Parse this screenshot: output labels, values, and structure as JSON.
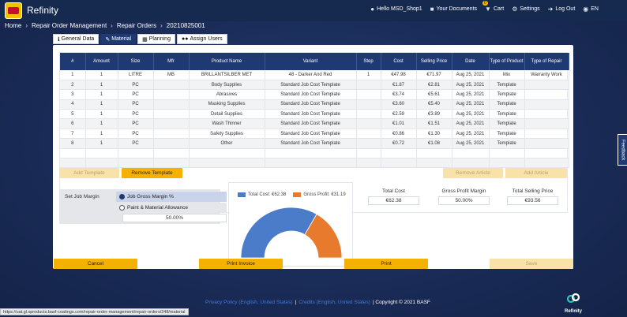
{
  "app": {
    "name": "Refinity"
  },
  "topnav": {
    "user": "Hello MSD_Shop1",
    "documents": "Your Documents",
    "cart": "Cart",
    "cart_badge": "0",
    "settings": "Settings",
    "logout": "Log Out",
    "language": "EN"
  },
  "breadcrumb": [
    "Home",
    "Repair Order Management",
    "Repair Orders",
    "20210825001"
  ],
  "tabs": [
    "General Data",
    "Material",
    "Planning",
    "Assign Users"
  ],
  "table": {
    "headers": [
      "#",
      "Amount",
      "Size",
      "Mfr",
      "Product Name",
      "Variant",
      "Step",
      "Cost",
      "Selling Price",
      "Date",
      "Type of Product",
      "Type of Repair"
    ],
    "rows": [
      [
        "1",
        "1",
        "LITRE",
        "MB",
        "BRILLANTSILBER MET",
        "48 - Darker And Red",
        "1",
        "€47.98",
        "€71.97",
        "Aug 25, 2021",
        "Mix",
        "Warranty Work"
      ],
      [
        "2",
        "1",
        "PC",
        "",
        "Body Supplies",
        "Standard Job Cost Template",
        "",
        "€1.87",
        "€2.81",
        "Aug 25, 2021",
        "Template",
        ""
      ],
      [
        "3",
        "1",
        "PC",
        "",
        "Abrasives",
        "Standard Job Cost Template",
        "",
        "€3.74",
        "€5.61",
        "Aug 25, 2021",
        "Template",
        ""
      ],
      [
        "4",
        "1",
        "PC",
        "",
        "Masking Supplies",
        "Standard Job Cost Template",
        "",
        "€3.60",
        "€5.40",
        "Aug 25, 2021",
        "Template",
        ""
      ],
      [
        "5",
        "1",
        "PC",
        "",
        "Detail Supplies",
        "Standard Job Cost Template",
        "",
        "€2.59",
        "€3.89",
        "Aug 25, 2021",
        "Template",
        ""
      ],
      [
        "6",
        "1",
        "PC",
        "",
        "Wash Thinner",
        "Standard Job Cost Template",
        "",
        "€1.01",
        "€1.51",
        "Aug 25, 2021",
        "Template",
        ""
      ],
      [
        "7",
        "1",
        "PC",
        "",
        "Safety Supplies",
        "Standard Job Cost Template",
        "",
        "€0.86",
        "€1.30",
        "Aug 25, 2021",
        "Template",
        ""
      ],
      [
        "8",
        "1",
        "PC",
        "",
        "Other",
        "Standard Job Cost Template",
        "",
        "€0.72",
        "€1.08",
        "Aug 25, 2021",
        "Template",
        ""
      ]
    ]
  },
  "actions": {
    "add_template": "Add Template",
    "remove_template": "Remove Template",
    "remove_article": "Remove Article",
    "add_article": "Add Article"
  },
  "margin": {
    "label": "Set Job Margin",
    "option1": "Job Gross Margin %",
    "option2": "Paint & Material Allowance",
    "value": "50.00%"
  },
  "chart": {
    "legend_cost": "Total Cost: €62.38",
    "legend_profit": "Gross Profit: €31.19"
  },
  "chart_data": {
    "type": "pie",
    "categories": [
      "Total Cost",
      "Gross Profit"
    ],
    "values": [
      62.38,
      31.19
    ],
    "colors": [
      "#4a7cc9",
      "#e87a2e"
    ]
  },
  "totals": {
    "total_cost_label": "Total Cost",
    "total_cost": "€62.38",
    "gross_margin_label": "Gross Profit Margin",
    "gross_margin": "50.00%",
    "total_selling_label": "Total Selling Price",
    "total_selling": "€93.56"
  },
  "buttons": {
    "cancel": "Cancel",
    "print_invoice": "Print Invoice",
    "print": "Print",
    "save": "Save"
  },
  "feedback": "Feedback",
  "footer": {
    "privacy": "Privacy Policy (English, United States)",
    "sep": "|",
    "credits": "Credits (English, United States)",
    "copyright": "| Copyright © 2021 BASF"
  },
  "statusbar": "https://uat.gl.xproducts.basf-coatings.com/repair-order-management/repair-orders/248/material",
  "footer_logo": "Refinity"
}
